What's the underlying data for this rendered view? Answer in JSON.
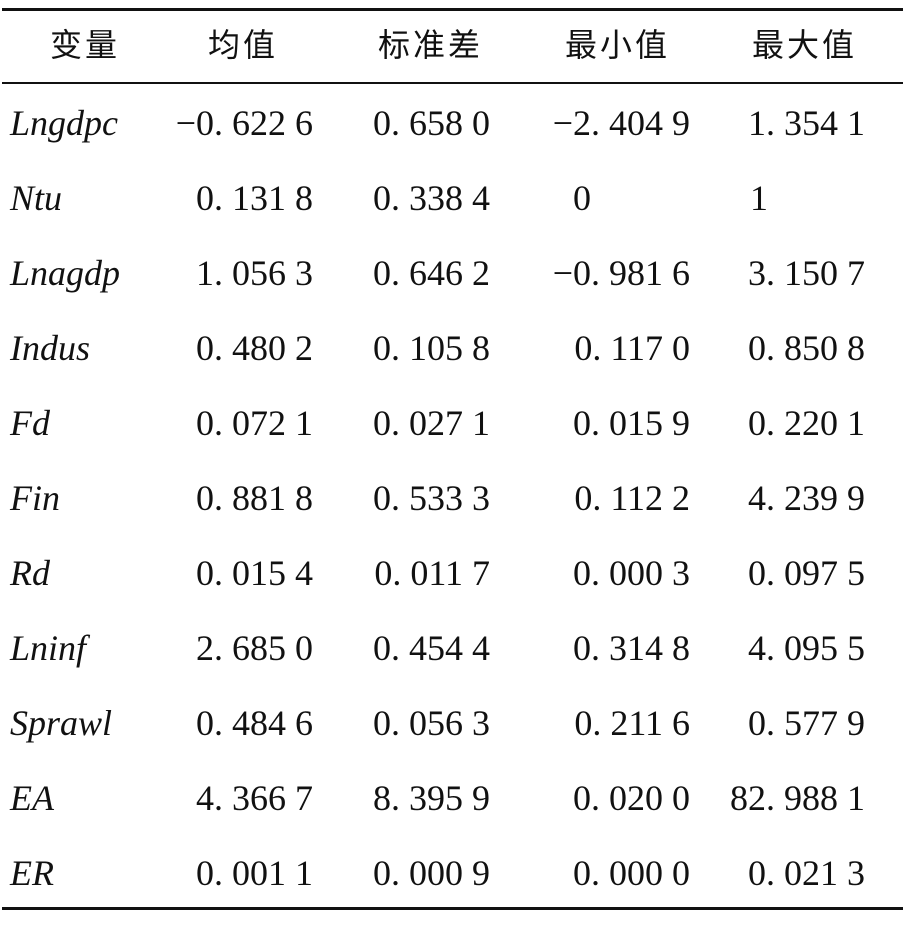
{
  "table": {
    "headers": [
      "变量",
      "均值",
      "标准差",
      "最小值",
      "最大值"
    ],
    "rows": [
      {
        "var": "Lngdpc",
        "mean": "−0. 622 6",
        "sd": "0. 658 0",
        "min": "−2. 404 9",
        "max": "1. 354 1"
      },
      {
        "var": "Ntu",
        "mean": "0. 131 8",
        "sd": "0. 338 4",
        "min": "0",
        "max": "1"
      },
      {
        "var": "Lnagdp",
        "mean": "1. 056 3",
        "sd": "0. 646 2",
        "min": "−0. 981 6",
        "max": "3. 150 7"
      },
      {
        "var": "Indus",
        "mean": "0. 480 2",
        "sd": "0. 105 8",
        "min": "0. 117 0",
        "max": "0. 850 8"
      },
      {
        "var": "Fd",
        "mean": "0. 072 1",
        "sd": "0. 027 1",
        "min": "0. 015 9",
        "max": "0. 220 1"
      },
      {
        "var": "Fin",
        "mean": "0. 881 8",
        "sd": "0. 533 3",
        "min": "0. 112 2",
        "max": "4. 239 9"
      },
      {
        "var": "Rd",
        "mean": "0. 015 4",
        "sd": "0. 011 7",
        "min": "0. 000 3",
        "max": "0. 097 5"
      },
      {
        "var": "Lninf",
        "mean": "2. 685 0",
        "sd": "0. 454 4",
        "min": "0. 314 8",
        "max": "4. 095 5"
      },
      {
        "var": "Sprawl",
        "mean": "0. 484 6",
        "sd": "0. 056 3",
        "min": "0. 211 6",
        "max": "0. 577 9"
      },
      {
        "var": "EA",
        "mean": "4. 366 7",
        "sd": "8. 395 9",
        "min": "0. 020 0",
        "max": "82. 988 1"
      },
      {
        "var": "ER",
        "mean": "0. 001 1",
        "sd": "0. 000 9",
        "min": "0. 000 0",
        "max": "0. 021 3"
      }
    ]
  }
}
